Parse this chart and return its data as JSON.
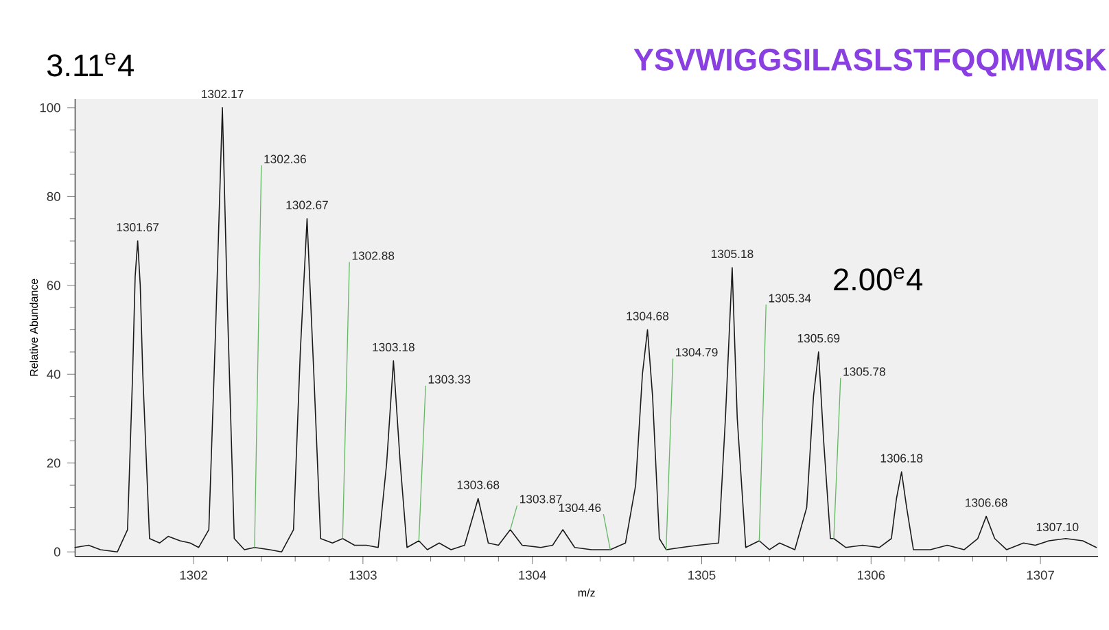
{
  "chart_data": {
    "type": "line",
    "title": "YSVWIGGSILASLSTFQQMWISK",
    "xlabel": "m/z",
    "ylabel": "Relative Abundance",
    "xlim": [
      1301.3,
      1307.34
    ],
    "ylim": [
      -1,
      102
    ],
    "xticks": [
      1302,
      1303,
      1304,
      1305,
      1306,
      1307
    ],
    "yticks": [
      0,
      20,
      40,
      60,
      80,
      100
    ],
    "series": [
      {
        "color": "#1a1a1a",
        "x": [
          1301.3,
          1301.38,
          1301.45,
          1301.55,
          1301.61,
          1301.64,
          1301.655,
          1301.67,
          1301.685,
          1301.7,
          1301.74,
          1301.8,
          1301.85,
          1301.92,
          1301.98,
          1302.03,
          1302.09,
          1302.13,
          1302.17,
          1302.2,
          1302.24,
          1302.3,
          1302.36,
          1302.45,
          1302.52,
          1302.59,
          1302.63,
          1302.67,
          1302.71,
          1302.75,
          1302.82,
          1302.88,
          1302.95,
          1303.02,
          1303.09,
          1303.14,
          1303.18,
          1303.22,
          1303.26,
          1303.33,
          1303.38,
          1303.45,
          1303.52,
          1303.6,
          1303.68,
          1303.74,
          1303.8,
          1303.87,
          1303.94,
          1304.05,
          1304.12,
          1304.18,
          1304.25,
          1304.35,
          1304.46,
          1304.55,
          1304.61,
          1304.65,
          1304.68,
          1304.71,
          1304.75,
          1304.79,
          1304.88,
          1304.98,
          1305.1,
          1305.14,
          1305.18,
          1305.21,
          1305.26,
          1305.34,
          1305.4,
          1305.46,
          1305.55,
          1305.62,
          1305.66,
          1305.69,
          1305.72,
          1305.76,
          1305.78,
          1305.85,
          1305.95,
          1306.05,
          1306.12,
          1306.15,
          1306.18,
          1306.21,
          1306.25,
          1306.35,
          1306.45,
          1306.55,
          1306.63,
          1306.68,
          1306.73,
          1306.8,
          1306.9,
          1306.97,
          1307.05,
          1307.15,
          1307.25,
          1307.33
        ],
        "values": [
          1,
          1.5,
          0.5,
          0,
          5,
          40,
          62,
          70,
          60,
          40,
          3,
          2,
          3.5,
          2.5,
          2,
          1,
          5,
          50,
          100,
          55,
          3,
          0.5,
          1,
          0.5,
          0,
          5,
          45,
          75,
          40,
          3,
          2,
          3,
          1.5,
          1.5,
          1,
          20,
          43,
          20,
          1,
          2.5,
          0.5,
          2,
          0.5,
          1.5,
          12,
          2,
          1.5,
          5,
          1.5,
          1,
          1.5,
          5,
          1,
          0.5,
          0.5,
          2,
          15,
          40,
          50,
          35,
          3,
          0.5,
          1,
          1.5,
          2,
          30,
          64,
          30,
          1,
          2.5,
          0.5,
          2,
          0.5,
          10,
          35,
          45,
          25,
          3,
          3,
          1,
          1.5,
          1,
          3,
          12,
          18,
          10,
          0.5,
          0.5,
          1.5,
          0.5,
          3,
          8,
          3,
          0.5,
          2,
          1.5,
          2.5,
          3,
          2.5,
          1
        ]
      }
    ],
    "annotations": [
      "3.11$^{e}$4",
      "2.00$^{e}$4",
      {
        "text": "1301.67",
        "x": 1301.67,
        "y": 70
      },
      {
        "text": "1302.17",
        "x": 1302.17,
        "y": 100
      },
      {
        "text": "1302.36",
        "x": 1302.36,
        "y": 1
      },
      {
        "text": "1302.67",
        "x": 1302.67,
        "y": 75
      },
      {
        "text": "1302.88",
        "x": 1302.88,
        "y": 3
      },
      {
        "text": "1303.18",
        "x": 1303.18,
        "y": 43
      },
      {
        "text": "1303.33",
        "x": 1303.33,
        "y": 2.5
      },
      {
        "text": "1303.68",
        "x": 1303.68,
        "y": 12
      },
      {
        "text": "1303.87",
        "x": 1303.87,
        "y": 5
      },
      {
        "text": "1304.46",
        "x": 1304.46,
        "y": 0.5
      },
      {
        "text": "1304.68",
        "x": 1304.68,
        "y": 50
      },
      {
        "text": "1304.79",
        "x": 1304.79,
        "y": 0.5
      },
      {
        "text": "1305.18",
        "x": 1305.18,
        "y": 64
      },
      {
        "text": "1305.34",
        "x": 1305.34,
        "y": 2.5
      },
      {
        "text": "1305.69",
        "x": 1305.69,
        "y": 45
      },
      {
        "text": "1305.78",
        "x": 1305.78,
        "y": 3
      },
      {
        "text": "1306.18",
        "x": 1306.18,
        "y": 18
      },
      {
        "text": "1306.68",
        "x": 1306.68,
        "y": 8
      },
      {
        "text": "1307.10",
        "x": 1307.1,
        "y": 2.5
      }
    ]
  }
}
